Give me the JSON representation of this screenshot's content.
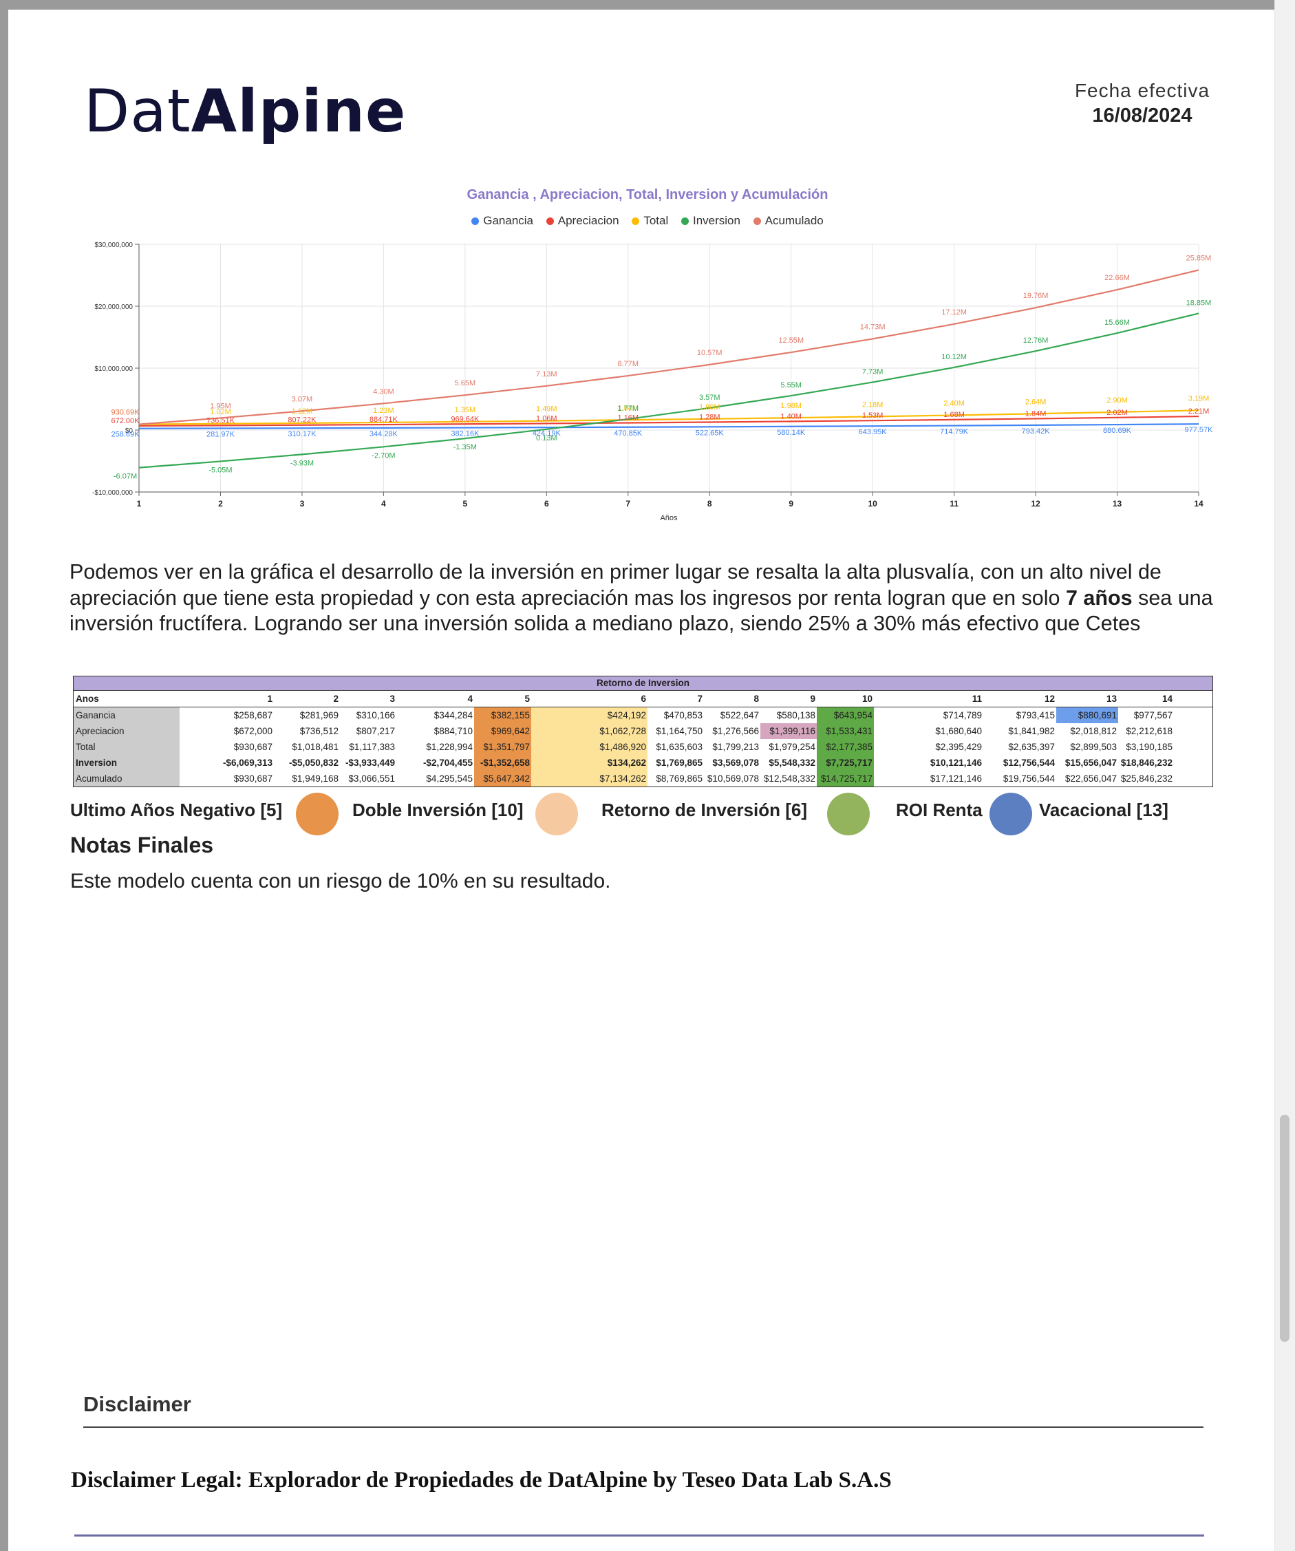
{
  "brand": {
    "name_light": "Dat",
    "name_bold": "Alpine"
  },
  "fecha": {
    "label": "Fecha  efectiva",
    "value": "16/08/2024"
  },
  "chart_data": {
    "type": "line",
    "title": "Ganancia , Apreciacion, Total, Inversion y Acumulación",
    "xlabel": "Años",
    "ylabel": "",
    "x": [
      1,
      2,
      3,
      4,
      5,
      6,
      7,
      8,
      9,
      10,
      11,
      12,
      13,
      14
    ],
    "ylim": [
      -10000000,
      30000000
    ],
    "yticks": [
      {
        "v": 30000000,
        "label": "$30,000,000"
      },
      {
        "v": 20000000,
        "label": "$20,000,000"
      },
      {
        "v": 10000000,
        "label": "$10,000,000"
      },
      {
        "v": 0,
        "label": "$0"
      },
      {
        "v": -10000000,
        "label": "-$10,000,000"
      }
    ],
    "grid": true,
    "legend_position": "top",
    "series": [
      {
        "name": "Ganancia",
        "color": "#4285f4",
        "values": [
          258687,
          281969,
          310166,
          344284,
          382155,
          424192,
          470853,
          522647,
          580138,
          643954,
          714789,
          793415,
          880691,
          977567
        ],
        "labels": [
          "258.69K",
          "281.97K",
          "310.17K",
          "344.28K",
          "382.16K",
          "424.19K",
          "470.85K",
          "522.65K",
          "580.14K",
          "643.95K",
          "714.79K",
          "793.42K",
          "880.69K",
          "977.57K"
        ]
      },
      {
        "name": "Apreciacion",
        "color": "#ea4335",
        "values": [
          672000,
          736512,
          807217,
          884710,
          969642,
          1062728,
          1164750,
          1276566,
          1399116,
          1533431,
          1680640,
          1841982,
          2018812,
          2212618
        ],
        "labels": [
          "672.00K",
          "736.51K",
          "807.22K",
          "884.71K",
          "969.64K",
          "1.06M",
          "1.16M",
          "1.28M",
          "1.40M",
          "1.53M",
          "1.68M",
          "1.84M",
          "2.02M",
          "2.21M"
        ]
      },
      {
        "name": "Total",
        "color": "#fbbc04",
        "values": [
          930687,
          1018481,
          1117383,
          1228994,
          1351797,
          1486920,
          1635603,
          1799213,
          1979254,
          2177385,
          2395429,
          2635397,
          2899503,
          3190185
        ],
        "labels": [
          "930.69K",
          "1.02M",
          "1.12M",
          "1.23M",
          "1.35M",
          "1.49M",
          "1.64M",
          "1.80M",
          "1.98M",
          "2.18M",
          "2.40M",
          "2.64M",
          "2.90M",
          "3.19M"
        ]
      },
      {
        "name": "Inversion",
        "color": "#34a853",
        "values": [
          -6069313,
          -5050832,
          -3933449,
          -2704455,
          -1352658,
          134262,
          1769865,
          3569078,
          5548332,
          7725717,
          10121146,
          12756544,
          15656047,
          18846232
        ],
        "labels": [
          "-6.07M",
          "-5.05M",
          "-3.93M",
          "-2.70M",
          "-1.35M",
          "0.13M",
          "1.77M",
          "3.57M",
          "5.55M",
          "7.73M",
          "10.12M",
          "12.76M",
          "15.66M",
          "18.85M"
        ]
      },
      {
        "name": "Acumulado",
        "color": "#e27b6b",
        "values": [
          930687,
          1949168,
          3066551,
          4295545,
          5647342,
          7134262,
          8769865,
          10569078,
          12548332,
          14725717,
          17121146,
          19756544,
          22656047,
          25846232
        ],
        "labels": [
          "930.69K",
          "1.95M",
          "3.07M",
          "4.30M",
          "5.65M",
          "7.13M",
          "8.77M",
          "10.57M",
          "12.55M",
          "14.73M",
          "17.12M",
          "19.76M",
          "22.66M",
          "25.85M"
        ]
      }
    ]
  },
  "paragraph": {
    "part1": " Podemos ver en la gráfica el desarrollo de la inversión en primer lugar se resalta la alta plusvalía, con un alto nivel de apreciación que tiene esta propiedad y con esta apreciación mas los ingresos por renta logran que en solo ",
    "bold": "7 años",
    "part2": " sea una inversión fructífera. Logrando ser una inversión solida a mediano plazo, siendo 25% a 30% más efectivo que Cetes"
  },
  "table": {
    "title": "Retorno de Inversion",
    "header_label": "Anos",
    "years": [
      "1",
      "2",
      "3",
      "4",
      "5",
      "6",
      "7",
      "8",
      "9",
      "10",
      "11",
      "12",
      "13",
      "14"
    ],
    "rows": [
      {
        "label": "Ganancia",
        "bold": false,
        "values": [
          "$258,687",
          "$281,969",
          "$310,166",
          "$344,284",
          "$382,155",
          "$424,192",
          "$470,853",
          "$522,647",
          "$580,138",
          "$643,954",
          "$714,789",
          "$793,415",
          "$880,691",
          "$977,567"
        ]
      },
      {
        "label": "Apreciacion",
        "bold": false,
        "values": [
          "$672,000",
          "$736,512",
          "$807,217",
          "$884,710",
          "$969,642",
          "$1,062,728",
          "$1,164,750",
          "$1,276,566",
          "$1,399,116",
          "$1,533,431",
          "$1,680,640",
          "$1,841,982",
          "$2,018,812",
          "$2,212,618"
        ]
      },
      {
        "label": "Total",
        "bold": false,
        "values": [
          "$930,687",
          "$1,018,481",
          "$1,117,383",
          "$1,228,994",
          "$1,351,797",
          "$1,486,920",
          "$1,635,603",
          "$1,799,213",
          "$1,979,254",
          "$2,177,385",
          "$2,395,429",
          "$2,635,397",
          "$2,899,503",
          "$3,190,185"
        ]
      },
      {
        "label": "Inversion",
        "bold": true,
        "values": [
          "-$6,069,313",
          "-$5,050,832",
          "-$3,933,449",
          "-$2,704,455",
          "-$1,352,658",
          "$134,262",
          "$1,769,865",
          "$3,569,078",
          "$5,548,332",
          "$7,725,717",
          "$10,121,146",
          "$12,756,544",
          "$15,656,047",
          "$18,846,232"
        ]
      },
      {
        "label": "Acumulado",
        "bold": false,
        "values": [
          "$930,687",
          "$1,949,168",
          "$3,066,551",
          "$4,295,545",
          "$5,647,342",
          "$7,134,262",
          "$8,769,865",
          "$10,569,078",
          "$12,548,332",
          "$14,725,717",
          "$17,121,146",
          "$19,756,544",
          "$22,656,047",
          "$25,846,232"
        ]
      }
    ],
    "colors": {
      "label_bg": "#cccccc",
      "negative": "#e8934a",
      "double": "#fde39a",
      "roi": "#5faa46",
      "pink": "#d5a6bd",
      "blue": "#6d9eeb"
    }
  },
  "legend_keys": [
    {
      "label": "Ultimo Años Negativo [5]",
      "color": "#e8934a"
    },
    {
      "label": "Doble Inversión [10]",
      "color": "#f6c9a0"
    },
    {
      "label": "Retorno de Inversión [6]",
      "color": "#93b35d"
    },
    {
      "label": "ROI Renta",
      "color": "#5b7fc1"
    },
    {
      "label": "Vacacional [13]",
      "color": ""
    }
  ],
  "notas": {
    "title": "Notas Finales",
    "text": "Este modelo cuenta con un riesgo de 10% en su resultado."
  },
  "disclaimer": {
    "title": "Disclaimer",
    "legal": "Disclaimer Legal: Explorador de Propiedades de DatAlpine by Teseo Data Lab S.A.S"
  }
}
